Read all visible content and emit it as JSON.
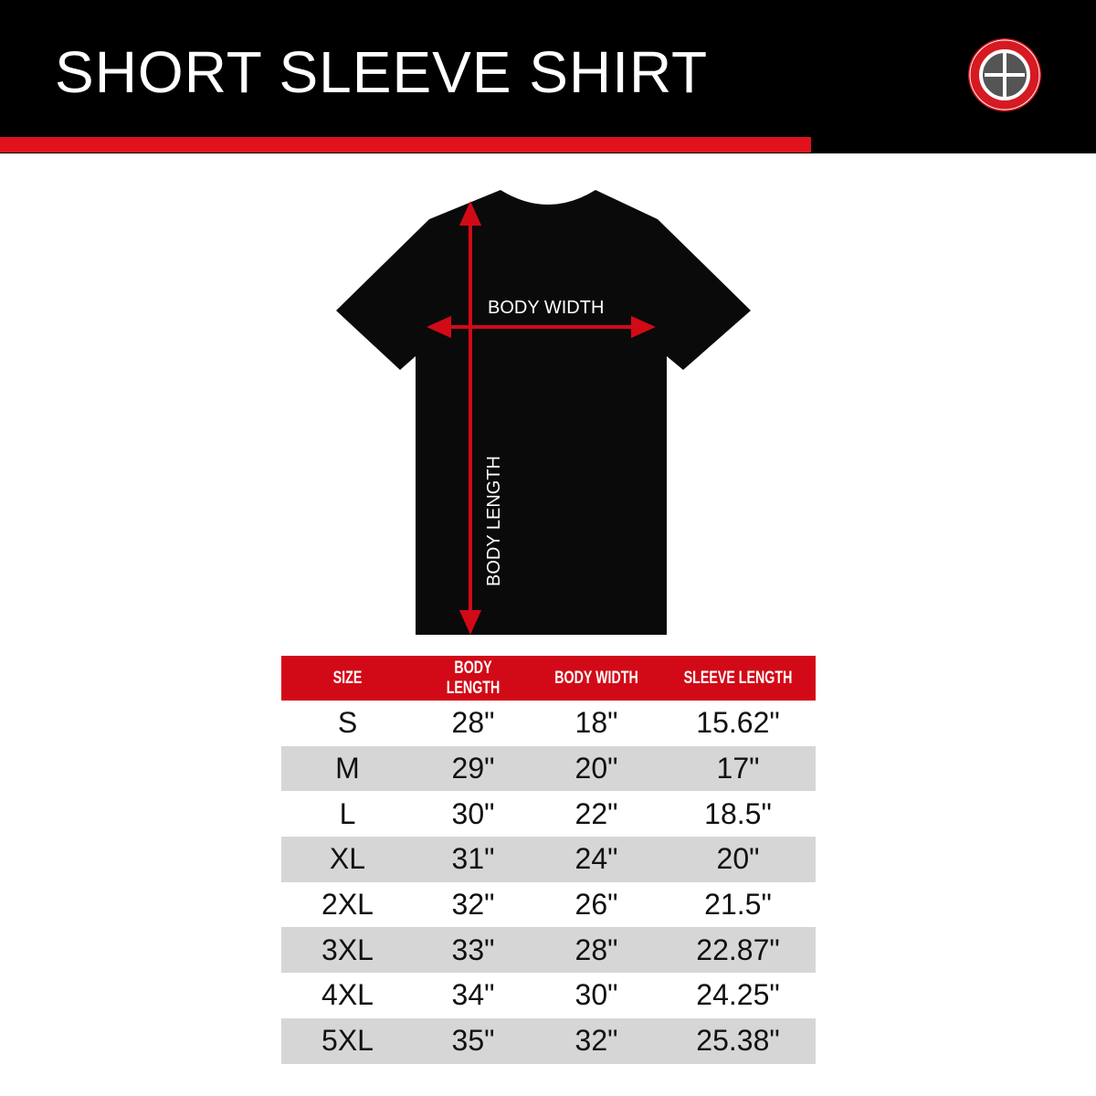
{
  "header": {
    "title": "SHORT SLEEVE SHIRT",
    "accent": "#e0131d"
  },
  "diagram": {
    "width_label": "BODY WIDTH",
    "length_label": "BODY LENGTH"
  },
  "table": {
    "columns": [
      "SIZE",
      "BODY LENGTH",
      "BODY WIDTH",
      "SLEEVE LENGTH"
    ],
    "rows": [
      [
        "S",
        "28\"",
        "18\"",
        "15.62\""
      ],
      [
        "M",
        "29\"",
        "20\"",
        "17\""
      ],
      [
        "L",
        "30\"",
        "22\"",
        "18.5\""
      ],
      [
        "XL",
        "31\"",
        "24\"",
        "20\""
      ],
      [
        "2XL",
        "32\"",
        "26\"",
        "21.5\""
      ],
      [
        "3XL",
        "33\"",
        "28\"",
        "22.87\""
      ],
      [
        "4XL",
        "34\"",
        "30\"",
        "24.25\""
      ],
      [
        "5XL",
        "35\"",
        "32\"",
        "25.38\""
      ]
    ]
  }
}
